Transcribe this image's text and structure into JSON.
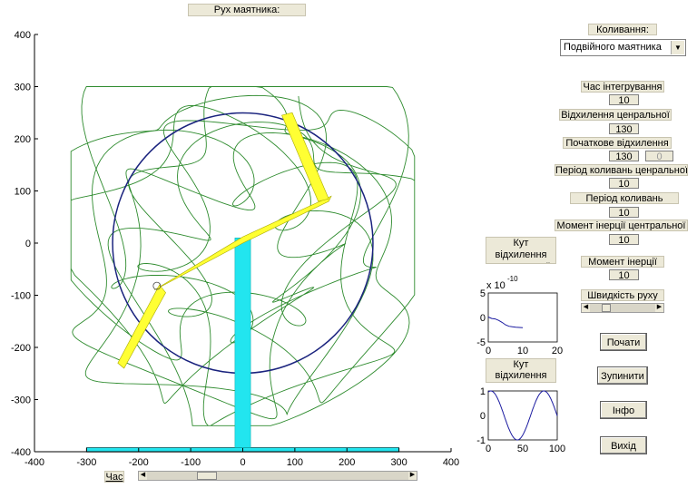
{
  "main_plot": {
    "title": "Рух маятника:",
    "x_ticks": [
      "-400",
      "-300",
      "-200",
      "-100",
      "0",
      "100",
      "200",
      "300",
      "400"
    ],
    "y_ticks": [
      "400",
      "300",
      "200",
      "100",
      "0",
      "-100",
      "-200",
      "-300",
      "-400"
    ],
    "xlim": [
      -400,
      400
    ],
    "ylim": [
      -400,
      400
    ],
    "circle_radius": 250
  },
  "oscillation": {
    "label": "Коливання:",
    "selected": "Подвійного маятника"
  },
  "params": {
    "integration_time_label": "Час інтегрування",
    "integration_time_value": "10",
    "central_deflection_label": "Відхилення ценральної",
    "central_deflection_value": "130",
    "initial_deflection_label": "Початкове відхилення",
    "initial_deflection_value": "130",
    "initial_deflection_value2": "0",
    "central_period_label": "Період коливань ценральної",
    "central_period_value": "10",
    "period_label": "Період коливань",
    "period_value": "10",
    "central_inertia_label": "Момент інерції центральної",
    "central_inertia_value": "10",
    "inertia_label": "Момент інерції",
    "inertia_value": "10",
    "speed_label": "Швидкість руху"
  },
  "mini_plot_central": {
    "label": "Кут відхилення центральної",
    "exponent": "x 10",
    "exponent_power": "-10",
    "y_ticks": [
      "5",
      "0",
      "-5"
    ],
    "x_ticks": [
      "0",
      "10",
      "20"
    ]
  },
  "mini_plot_satellite": {
    "label": "Кут відхилення сателіту",
    "y_ticks": [
      "1",
      "0",
      "-1"
    ],
    "x_ticks": [
      "0",
      "50",
      "100"
    ]
  },
  "buttons": {
    "start": "Почати",
    "stop": "Зупинити",
    "info": "Інфо",
    "exit": "Вихід"
  },
  "time_label": "Час",
  "colors": {
    "trace": "#2e8b2e",
    "circle": "#1a237e",
    "arm": "#ffff33",
    "post": "#22e5ef",
    "panel": "#ece9d8"
  }
}
